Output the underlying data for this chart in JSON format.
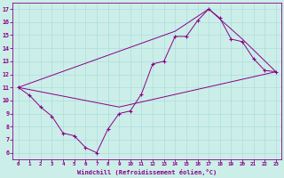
{
  "xlabel": "Windchill (Refroidissement éolien,°C)",
  "bg_color": "#cceee8",
  "line_color": "#880088",
  "grid_color": "#aadddd",
  "xlim": [
    -0.5,
    23.5
  ],
  "ylim": [
    5.5,
    17.5
  ],
  "xticks": [
    0,
    1,
    2,
    3,
    4,
    5,
    6,
    7,
    8,
    9,
    10,
    11,
    12,
    13,
    14,
    15,
    16,
    17,
    18,
    19,
    20,
    21,
    22,
    23
  ],
  "yticks": [
    6,
    7,
    8,
    9,
    10,
    11,
    12,
    13,
    14,
    15,
    16,
    17
  ],
  "line1_x": [
    0,
    1,
    2,
    3,
    4,
    5,
    6,
    7,
    8,
    9,
    10,
    11,
    12,
    13,
    14,
    15,
    16,
    17,
    18,
    19,
    20,
    21,
    22,
    23
  ],
  "line1_y": [
    11.0,
    10.4,
    9.5,
    8.8,
    7.5,
    7.3,
    6.4,
    6.0,
    7.8,
    9.0,
    9.2,
    10.5,
    12.8,
    13.0,
    14.9,
    14.9,
    16.1,
    17.0,
    16.3,
    14.7,
    14.5,
    13.2,
    12.3,
    12.2
  ],
  "line2_x": [
    0,
    9,
    23
  ],
  "line2_y": [
    11.0,
    9.5,
    12.2
  ],
  "line3_x": [
    0,
    14,
    17,
    20,
    23
  ],
  "line3_y": [
    11.0,
    15.3,
    17.0,
    14.7,
    12.2
  ]
}
